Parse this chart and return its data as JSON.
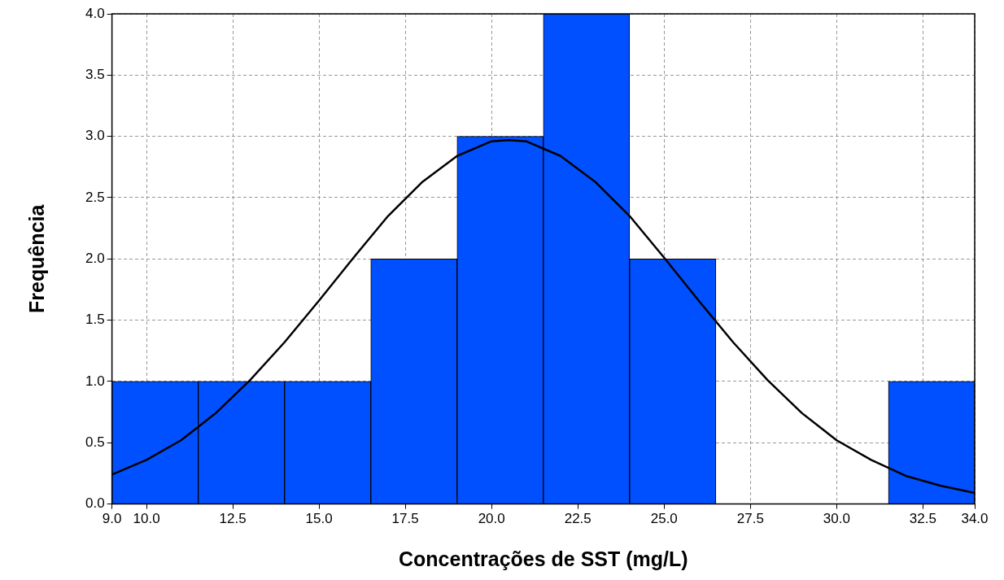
{
  "chart_data": {
    "type": "histogram",
    "xlabel": "Concentrações de SST (mg/L)",
    "ylabel": "Frequência",
    "bins": [
      9,
      11.5,
      14,
      16.5,
      19,
      21.5,
      24,
      26.5,
      29,
      31.5,
      34
    ],
    "values": [
      1,
      1,
      1,
      2,
      3,
      4,
      2,
      0,
      0,
      1
    ],
    "color": "#0050ff",
    "series": [
      {
        "type": "line",
        "color": "#000000",
        "x": [
          9,
          10,
          11,
          12,
          13,
          14,
          15,
          16,
          17,
          18,
          19,
          20,
          20.5,
          21,
          22,
          23,
          24,
          25,
          26,
          27,
          28,
          29,
          30,
          31,
          32,
          33,
          34
        ],
        "values": [
          0.24,
          0.36,
          0.52,
          0.74,
          1.01,
          1.32,
          1.66,
          2.01,
          2.35,
          2.63,
          2.84,
          2.96,
          2.97,
          2.96,
          2.84,
          2.63,
          2.35,
          2.01,
          1.66,
          1.32,
          1.01,
          0.74,
          0.52,
          0.36,
          0.23,
          0.15,
          0.09
        ]
      }
    ],
    "xlim": [
      9,
      34
    ],
    "xticks": [
      {
        "value": 9,
        "label": "9.0"
      },
      {
        "value": 10,
        "label": "10.0"
      },
      {
        "value": 12.5,
        "label": "12.5"
      },
      {
        "value": 15,
        "label": "15.0"
      },
      {
        "value": 17.5,
        "label": "17.5"
      },
      {
        "value": 20,
        "label": "20.0"
      },
      {
        "value": 22.5,
        "label": "22.5"
      },
      {
        "value": 25,
        "label": "25.0"
      },
      {
        "value": 27.5,
        "label": "27.5"
      },
      {
        "value": 30,
        "label": "30.0"
      },
      {
        "value": 32.5,
        "label": "32.5"
      },
      {
        "value": 34,
        "label": "34.0"
      }
    ],
    "ylim": [
      0,
      4
    ],
    "yticks": [
      {
        "value": 0,
        "label": "0.0"
      },
      {
        "value": 0.5,
        "label": "0.5"
      },
      {
        "value": 1,
        "label": "1.0"
      },
      {
        "value": 1.5,
        "label": "1.5"
      },
      {
        "value": 2,
        "label": "2.0"
      },
      {
        "value": 2.5,
        "label": "2.5"
      },
      {
        "value": 3,
        "label": "3.0"
      },
      {
        "value": 3.5,
        "label": "3.5"
      },
      {
        "value": 4,
        "label": "4.0"
      }
    ],
    "grid": true
  }
}
